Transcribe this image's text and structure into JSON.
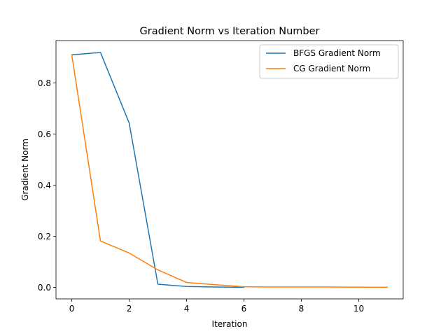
{
  "chart_data": {
    "type": "line",
    "title": "Gradient Norm vs Iteration Number",
    "xlabel": "Iteration",
    "ylabel": "Gradient Norm",
    "xlim": [
      -0.55,
      11.55
    ],
    "ylim": [
      -0.0455,
      0.9655
    ],
    "xticks": [
      0,
      2,
      4,
      6,
      8,
      10
    ],
    "yticks": [
      0.0,
      0.2,
      0.4,
      0.6,
      0.8
    ],
    "xtick_labels": [
      "0",
      "2",
      "4",
      "6",
      "8",
      "10"
    ],
    "ytick_labels": [
      "0.0",
      "0.2",
      "0.4",
      "0.6",
      "0.8"
    ],
    "grid": false,
    "legend_position": "top-right",
    "series": [
      {
        "name": "BFGS Gradient Norm",
        "color": "#1f77b4",
        "x": [
          0,
          1,
          2,
          3,
          4,
          5,
          6
        ],
        "y": [
          0.91,
          0.919,
          0.643,
          0.012,
          0.003,
          0.001,
          0.0
        ]
      },
      {
        "name": "CG Gradient Norm",
        "color": "#ff7f0e",
        "x": [
          0,
          1,
          2,
          3,
          4,
          5,
          6,
          7,
          8,
          9,
          10,
          11
        ],
        "y": [
          0.91,
          0.181,
          0.134,
          0.068,
          0.019,
          0.01,
          0.002,
          0.001,
          0.001,
          0.001,
          0.0005,
          0.0
        ]
      }
    ]
  }
}
